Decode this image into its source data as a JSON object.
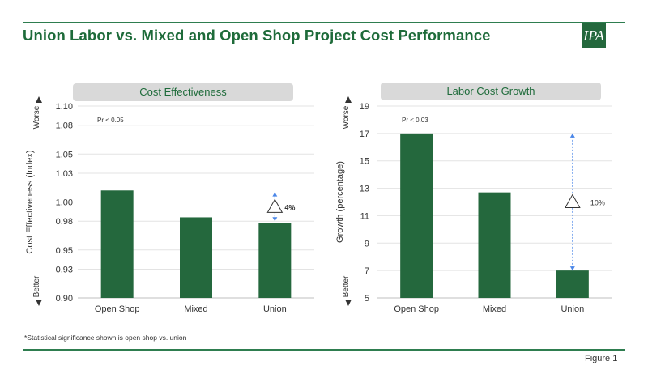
{
  "header": {
    "title": "Union Labor vs. Mixed and Open Shop Project Cost Performance",
    "logo_text": "IPA",
    "accent_color": "#24683d"
  },
  "footnote": "*Statistical significance shown is open shop vs. union",
  "figure_label": "Figure 1",
  "chart_data": [
    {
      "type": "bar",
      "title": "Cost Effectiveness",
      "categories": [
        "Open Shop",
        "Mixed",
        "Union"
      ],
      "values": [
        1.012,
        0.984,
        0.978
      ],
      "ylabel": "Cost Effectiveness (Index)",
      "ylim": [
        0.9,
        1.1
      ],
      "yticks": [
        "0.90",
        "0.93",
        "0.95",
        "0.98",
        "1.00",
        "1.03",
        "1.05",
        "1.08",
        "1.10"
      ],
      "grid": true,
      "bar_color": "#24683d",
      "axis_top_label": "Worse",
      "axis_bottom_label": "Better",
      "significance": "Pr < 0.05",
      "delta_label": "4%",
      "delta_from": 1.01,
      "delta_to": 0.98
    },
    {
      "type": "bar",
      "title": "Labor Cost Growth",
      "categories": [
        "Open Shop",
        "Mixed",
        "Union"
      ],
      "values": [
        17.0,
        12.7,
        7.0
      ],
      "ylabel": "Growth (percentage)",
      "ylim": [
        5,
        19
      ],
      "yticks": [
        "5",
        "7",
        "9",
        "11",
        "13",
        "15",
        "17",
        "19"
      ],
      "grid": true,
      "bar_color": "#24683d",
      "axis_top_label": "Worse",
      "axis_bottom_label": "Better",
      "significance": "Pr < 0.03",
      "delta_label": "10%",
      "delta_from": 17.0,
      "delta_to": 7.0
    }
  ]
}
